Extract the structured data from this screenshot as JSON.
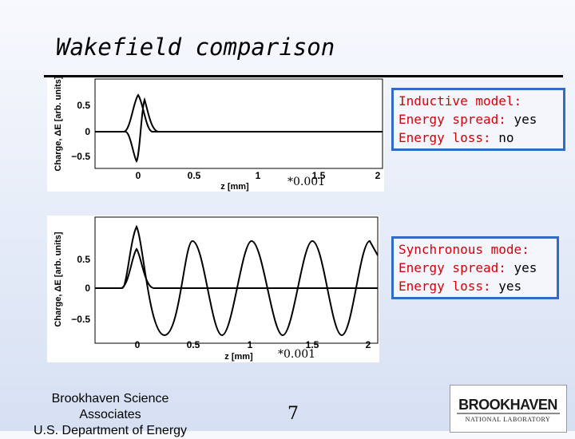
{
  "title": "Wakefield comparison",
  "plots": [
    {
      "ylabel": "Charge, ΔE [arb. units]",
      "xlabel": "z [mm]",
      "yticks": [
        "0.5",
        "0",
        "−0.5"
      ],
      "xticks": [
        "0",
        "0.5",
        "1",
        "1.5",
        "2"
      ]
    },
    {
      "ylabel": "Charge, ΔE [arb. units]",
      "xlabel": "z [mm]",
      "yticks": [
        "0.5",
        "0",
        "−0.5"
      ],
      "xticks": [
        "0",
        "0.5",
        "1",
        "1.5",
        "2"
      ]
    }
  ],
  "notes": [
    {
      "model": "Inductive model:",
      "spread_label": "Energy spread:",
      "spread_value": "yes",
      "loss_label": "Energy loss:",
      "loss_value": "no"
    },
    {
      "model": "Synchronous mode:",
      "spread_label": "Energy spread:",
      "spread_value": "yes",
      "loss_label": "Energy loss:",
      "loss_value": "yes"
    }
  ],
  "factors": [
    "*0.001",
    "*0.001"
  ],
  "footer": {
    "line1": "Brookhaven Science",
    "line2": "Associates",
    "line3": "U.S. Department of Energy"
  },
  "page_number": "7",
  "logo": {
    "name": "BROOKHAVEN",
    "sub": "NATIONAL LABORATORY"
  }
}
